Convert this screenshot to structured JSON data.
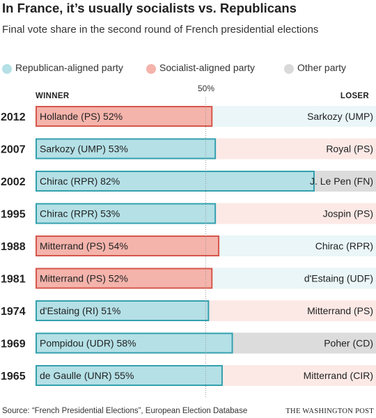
{
  "title": "In France, it’s usually socialists vs. Republicans",
  "subtitle": "Final vote share in the second round of French presidential elections",
  "legend": [
    {
      "label": "Republican-aligned party",
      "color": "#b4e0e6"
    },
    {
      "label": "Socialist-aligned party",
      "color": "#f4b3ab"
    },
    {
      "label": "Other party",
      "color": "#d9d9d9"
    }
  ],
  "headers": {
    "winner": "WINNER",
    "loser": "LOSER",
    "midline": "50%"
  },
  "footer": {
    "source": "Source: “French Presidential Elections”, European Election Database",
    "brand": "THE WASHINGTON POST"
  },
  "colors": {
    "republican_fill": "#b4e0e6",
    "republican_stroke": "#33a0ad",
    "republican_bg": "#eaf6f8",
    "socialist_fill": "#f4b3ab",
    "socialist_stroke": "#d5574c",
    "socialist_bg": "#fce9e6",
    "other_bg": "#dcdcdc"
  },
  "chart_data": {
    "type": "bar",
    "orientation": "horizontal",
    "xlim": [
      0,
      100
    ],
    "reference_line": 50,
    "rows": [
      {
        "year": "2012",
        "winner_label": "Hollande (PS) 52%",
        "winner_pct": 52,
        "winner_party": "socialist",
        "loser_label": "Sarkozy (UMP)",
        "loser_party": "republican"
      },
      {
        "year": "2007",
        "winner_label": "Sarkozy (UMP) 53%",
        "winner_pct": 53,
        "winner_party": "republican",
        "loser_label": "Royal (PS)",
        "loser_party": "socialist"
      },
      {
        "year": "2002",
        "winner_label": "Chirac (RPR) 82%",
        "winner_pct": 82,
        "winner_party": "republican",
        "loser_label": "J. Le Pen (FN)",
        "loser_party": "other"
      },
      {
        "year": "1995",
        "winner_label": "Chirac (RPR) 53%",
        "winner_pct": 53,
        "winner_party": "republican",
        "loser_label": "Jospin (PS)",
        "loser_party": "socialist"
      },
      {
        "year": "1988",
        "winner_label": "Mitterrand (PS) 54%",
        "winner_pct": 54,
        "winner_party": "socialist",
        "loser_label": "Chirac (RPR)",
        "loser_party": "republican"
      },
      {
        "year": "1981",
        "winner_label": "Mitterrand (PS) 52%",
        "winner_pct": 52,
        "winner_party": "socialist",
        "loser_label": "d'Estaing (UDF)",
        "loser_party": "republican"
      },
      {
        "year": "1974",
        "winner_label": "d'Estaing (RI) 51%",
        "winner_pct": 51,
        "winner_party": "republican",
        "loser_label": "Mitterrand (PS)",
        "loser_party": "socialist"
      },
      {
        "year": "1969",
        "winner_label": "Pompidou (UDR) 58%",
        "winner_pct": 58,
        "winner_party": "republican",
        "loser_label": "Poher (CD)",
        "loser_party": "other"
      },
      {
        "year": "1965",
        "winner_label": "de Gaulle (UNR) 55%",
        "winner_pct": 55,
        "winner_party": "republican",
        "loser_label": "Mitterrand (CIR)",
        "loser_party": "socialist"
      }
    ]
  }
}
